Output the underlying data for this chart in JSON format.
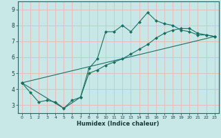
{
  "xlabel": "Humidex (Indice chaleur)",
  "background_color": "#c8e8e8",
  "grid_color": "#e8b8b8",
  "line_color": "#1a7060",
  "xlim": [
    -0.5,
    23.5
  ],
  "ylim": [
    2.5,
    9.5
  ],
  "xticks": [
    0,
    1,
    2,
    3,
    4,
    5,
    6,
    7,
    8,
    9,
    10,
    11,
    12,
    13,
    14,
    15,
    16,
    17,
    18,
    19,
    20,
    21,
    22,
    23
  ],
  "yticks": [
    3,
    4,
    5,
    6,
    7,
    8,
    9
  ],
  "line1_x": [
    0,
    1,
    2,
    3,
    4,
    5,
    6,
    7,
    8,
    9,
    10,
    11,
    12,
    13,
    14,
    15,
    16,
    17,
    18,
    19,
    20,
    21,
    22,
    23
  ],
  "line1_y": [
    4.4,
    3.8,
    3.2,
    3.3,
    3.2,
    2.8,
    3.3,
    3.5,
    5.3,
    5.9,
    7.6,
    7.6,
    8.0,
    7.6,
    8.2,
    8.8,
    8.3,
    8.1,
    8.0,
    7.7,
    7.6,
    7.4,
    7.4,
    7.3
  ],
  "line2_x": [
    0,
    5,
    7,
    8,
    9,
    10,
    11,
    12,
    13,
    14,
    15,
    16,
    17,
    18,
    19,
    20,
    21,
    22,
    23
  ],
  "line2_y": [
    4.4,
    2.8,
    3.5,
    5.0,
    5.2,
    5.5,
    5.7,
    5.9,
    6.2,
    6.5,
    6.8,
    7.2,
    7.5,
    7.7,
    7.8,
    7.8,
    7.5,
    7.4,
    7.3
  ],
  "line3_x": [
    0,
    23
  ],
  "line3_y": [
    4.4,
    7.3
  ]
}
